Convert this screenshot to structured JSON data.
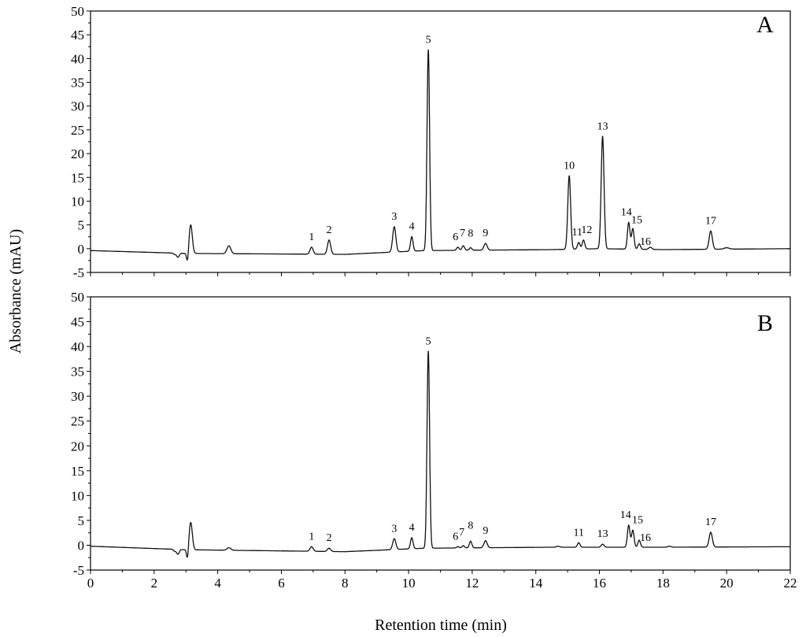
{
  "chart_data": [
    {
      "type": "line",
      "panel_label": "A",
      "xlabel": "Retention time (min)",
      "ylabel": "Absorbance (mAU)",
      "xlim": [
        0,
        22
      ],
      "ylim": [
        -5,
        50
      ],
      "x_ticks": [
        "0",
        "2",
        "4",
        "6",
        "8",
        "10",
        "12",
        "14",
        "16",
        "18",
        "20",
        "22"
      ],
      "y_ticks": [
        "-5",
        "0",
        "5",
        "10",
        "15",
        "20",
        "25",
        "30",
        "35",
        "40",
        "45",
        "50"
      ],
      "grid": false,
      "baseline": [
        [
          0,
          -0.4
        ],
        [
          3.0,
          -1.0
        ],
        [
          8,
          -1.2
        ],
        [
          10.5,
          -0.4
        ],
        [
          14.5,
          -0.2
        ],
        [
          16,
          0.0
        ],
        [
          18,
          -0.2
        ],
        [
          22,
          0.0
        ]
      ],
      "artifacts": [
        {
          "x": 2.65,
          "y": -1.2,
          "w": 0.04
        },
        {
          "x": 2.75,
          "y": -1.8,
          "w": 0.04
        },
        {
          "x": 3.05,
          "y": -3.0,
          "w": 0.03
        },
        {
          "x": 3.15,
          "y": 5.0,
          "w": 0.05
        },
        {
          "x": 4.35,
          "y": 0.6,
          "w": 0.06
        },
        {
          "x": 17.6,
          "y": 0.3,
          "w": 0.05
        },
        {
          "x": 20.0,
          "y": 0.2,
          "w": 0.08
        }
      ],
      "peaks": [
        {
          "label": "1",
          "x": 6.95,
          "y": 0.3,
          "w": 0.05
        },
        {
          "label": "2",
          "x": 7.5,
          "y": 1.8,
          "w": 0.05
        },
        {
          "label": "3",
          "x": 9.55,
          "y": 4.6,
          "w": 0.05
        },
        {
          "label": "4",
          "x": 10.1,
          "y": 2.5,
          "w": 0.04
        },
        {
          "label": "5",
          "x": 10.62,
          "y": 41.8,
          "w": 0.04
        },
        {
          "label": "6",
          "x": 11.55,
          "y": 0.3,
          "w": 0.04
        },
        {
          "label": "7",
          "x": 11.72,
          "y": 0.6,
          "w": 0.04
        },
        {
          "label": "8",
          "x": 11.95,
          "y": 0.2,
          "w": 0.04
        },
        {
          "label": "9",
          "x": 12.42,
          "y": 1.1,
          "w": 0.05
        },
        {
          "label": "10",
          "x": 15.05,
          "y": 15.3,
          "w": 0.045
        },
        {
          "label": "11",
          "x": 15.35,
          "y": 1.3,
          "w": 0.04
        },
        {
          "label": "12",
          "x": 15.5,
          "y": 1.8,
          "w": 0.04
        },
        {
          "label": "13",
          "x": 16.1,
          "y": 23.6,
          "w": 0.045
        },
        {
          "label": "14",
          "x": 16.92,
          "y": 5.5,
          "w": 0.04
        },
        {
          "label": "15",
          "x": 17.05,
          "y": 4.2,
          "w": 0.04
        },
        {
          "label": "16",
          "x": 17.25,
          "y": 1.0,
          "w": 0.04
        },
        {
          "label": "17",
          "x": 19.5,
          "y": 3.7,
          "w": 0.05
        }
      ]
    },
    {
      "type": "line",
      "panel_label": "B",
      "xlabel": "Retention time (min)",
      "ylabel": "Absorbance (mAU)",
      "xlim": [
        0,
        22
      ],
      "ylim": [
        -5,
        50
      ],
      "x_ticks": [
        "0",
        "2",
        "4",
        "6",
        "8",
        "10",
        "12",
        "14",
        "16",
        "18",
        "20",
        "22"
      ],
      "y_ticks": [
        "-5",
        "0",
        "5",
        "10",
        "15",
        "20",
        "25",
        "30",
        "35",
        "40",
        "45",
        "50"
      ],
      "grid": false,
      "baseline": [
        [
          0,
          -0.2
        ],
        [
          3.0,
          -0.9
        ],
        [
          8,
          -1.3
        ],
        [
          10.5,
          -0.6
        ],
        [
          14.5,
          -0.4
        ],
        [
          18,
          -0.4
        ],
        [
          22,
          -0.3
        ]
      ],
      "artifacts": [
        {
          "x": 2.65,
          "y": -1.2,
          "w": 0.04
        },
        {
          "x": 2.75,
          "y": -1.8,
          "w": 0.04
        },
        {
          "x": 3.05,
          "y": -3.0,
          "w": 0.03
        },
        {
          "x": 3.15,
          "y": 4.6,
          "w": 0.05
        },
        {
          "x": 4.35,
          "y": -0.5,
          "w": 0.06
        },
        {
          "x": 14.7,
          "y": -0.2,
          "w": 0.05
        },
        {
          "x": 18.2,
          "y": -0.2,
          "w": 0.05
        }
      ],
      "peaks": [
        {
          "label": "1",
          "x": 6.95,
          "y": -0.3,
          "w": 0.05
        },
        {
          "label": "2",
          "x": 7.5,
          "y": -0.6,
          "w": 0.05
        },
        {
          "label": "3",
          "x": 9.55,
          "y": 1.3,
          "w": 0.05
        },
        {
          "label": "4",
          "x": 10.1,
          "y": 1.5,
          "w": 0.04
        },
        {
          "label": "5",
          "x": 10.62,
          "y": 39.0,
          "w": 0.04
        },
        {
          "label": "6",
          "x": 11.55,
          "y": -0.3,
          "w": 0.04
        },
        {
          "label": "7",
          "x": 11.72,
          "y": -0.1,
          "w": 0.04
        },
        {
          "label": "8",
          "x": 11.95,
          "y": 0.8,
          "w": 0.04
        },
        {
          "label": "9",
          "x": 12.42,
          "y": 0.9,
          "w": 0.05
        },
        {
          "label": "11",
          "x": 15.35,
          "y": 0.5,
          "w": 0.04
        },
        {
          "label": "13",
          "x": 16.1,
          "y": 0.2,
          "w": 0.045
        },
        {
          "label": "14",
          "x": 16.92,
          "y": 4.0,
          "w": 0.04
        },
        {
          "label": "15",
          "x": 17.05,
          "y": 3.0,
          "w": 0.04
        },
        {
          "label": "16",
          "x": 17.25,
          "y": 1.0,
          "w": 0.04
        },
        {
          "label": "17",
          "x": 19.5,
          "y": 2.6,
          "w": 0.05
        }
      ]
    }
  ]
}
